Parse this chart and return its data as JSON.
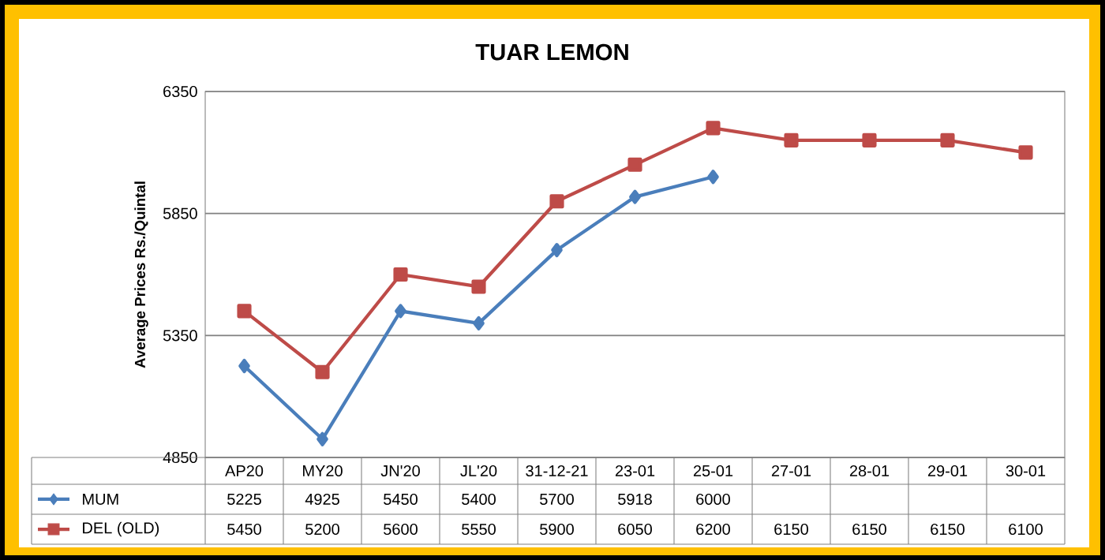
{
  "chart_data": {
    "type": "line",
    "title": "TUAR LEMON",
    "ylabel": "Average Prices  Rs./Quintal",
    "categories": [
      "AP20",
      "MY20",
      "JN'20",
      "JL'20",
      "31-12-21",
      "23-01",
      "25-01",
      "27-01",
      "28-01",
      "29-01",
      "30-01"
    ],
    "series": [
      {
        "name": "MUM",
        "color": "#4a7ebb",
        "marker": "diamond",
        "values": [
          5225,
          4925,
          5450,
          5400,
          5700,
          5918,
          6000,
          null,
          null,
          null,
          null
        ]
      },
      {
        "name": "DEL (OLD)",
        "color": "#be4b48",
        "marker": "square",
        "values": [
          5450,
          5200,
          5600,
          5550,
          5900,
          6050,
          6200,
          6150,
          6150,
          6150,
          6100
        ]
      }
    ],
    "ylim": [
      4850,
      6350
    ],
    "yticks": [
      4850,
      5350,
      5850,
      6350
    ],
    "grid": "y",
    "legend": "bottom",
    "data_labels": true
  }
}
